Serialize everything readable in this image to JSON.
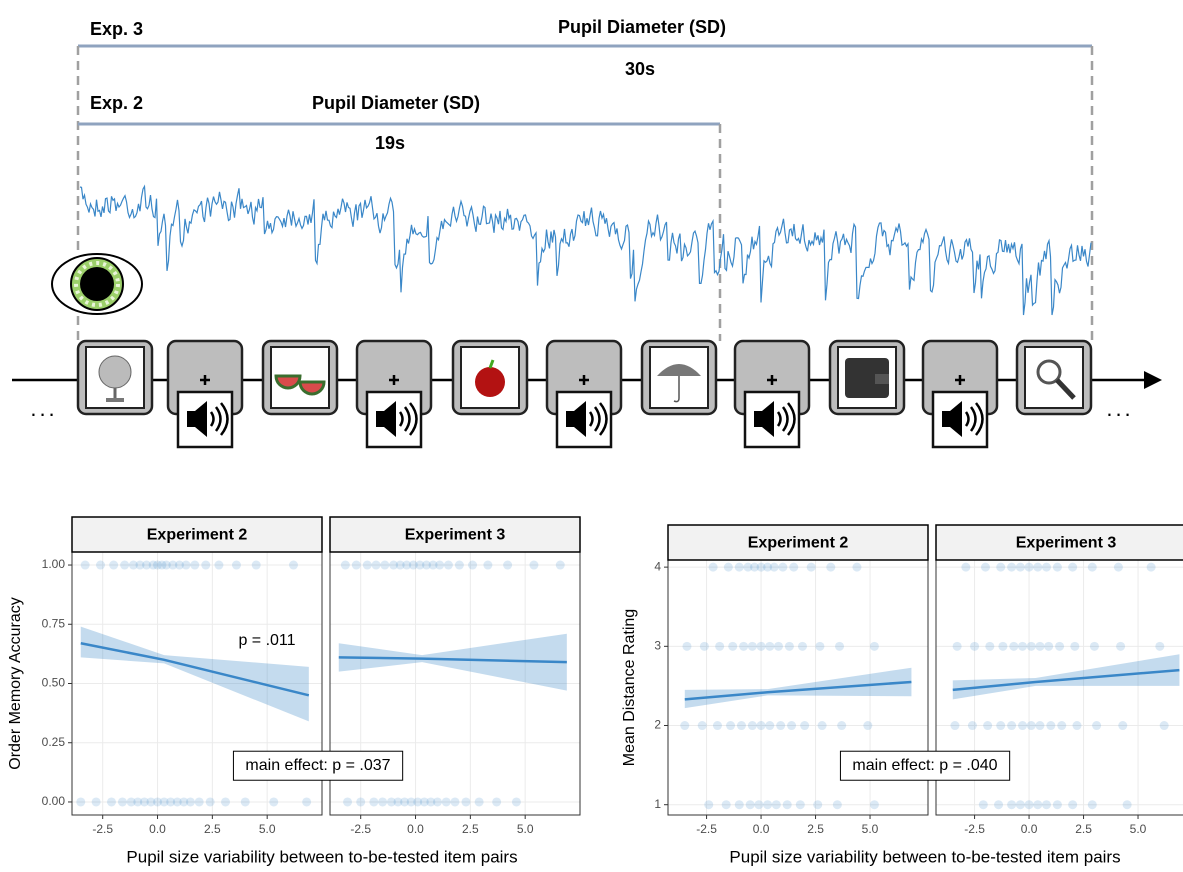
{
  "diagram": {
    "exp3": {
      "label": "Exp. 3",
      "measure": "Pupil Diameter (SD)",
      "duration": "30s"
    },
    "exp2": {
      "label": "Exp. 2",
      "measure": "Pupil Diameter (SD)",
      "duration": "19s"
    },
    "ellipsis_left": "...",
    "ellipsis_right": "..."
  },
  "chart_data": [
    {
      "type": "line",
      "ylabel": "Order Memory Accuracy",
      "xlabel": "Pupil size variability between to-be-tested item pairs",
      "annotation": "main effect: p = .037",
      "color": "#3a87c8",
      "ylim": [
        -0.055,
        1.055
      ],
      "yticks": [
        {
          "value": 0,
          "label": "0.00"
        },
        {
          "value": 0.25,
          "label": "0.25"
        },
        {
          "value": 0.5,
          "label": "0.50"
        },
        {
          "value": 0.75,
          "label": "0.75"
        },
        {
          "value": 1,
          "label": "1.00"
        }
      ],
      "grid": true,
      "facets": [
        {
          "title": "Experiment 2",
          "annotation": "p = .011",
          "xlim": [
            -3.9,
            7.5
          ],
          "xticks": [
            -2.5,
            {
              "value": 0,
              "label": "0.0"
            },
            2.5,
            {
              "value": 5,
              "label": "5.0"
            }
          ],
          "x": [
            -3.5,
            0.3,
            6.9
          ],
          "values": [
            0.67,
            0.6,
            0.45
          ],
          "ci_lower": [
            0.61,
            0.585,
            0.34
          ],
          "ci_upper": [
            0.74,
            0.62,
            0.57
          ],
          "points": [
            {
              "y": 1,
              "x": [
                -3.3,
                -2.6,
                -2,
                -1.5,
                -1.1,
                -0.8,
                -0.5,
                -0.2,
                0,
                0.2,
                0.4,
                0.7,
                1,
                1.3,
                1.7,
                2.2,
                2.8,
                3.6,
                4.5,
                6.2
              ]
            },
            {
              "y": 0,
              "x": [
                -3.5,
                -2.8,
                -2.1,
                -1.6,
                -1.2,
                -0.9,
                -0.6,
                -0.3,
                0,
                0.3,
                0.6,
                0.9,
                1.2,
                1.5,
                1.9,
                2.4,
                3.1,
                4,
                5.3,
                6.8
              ]
            }
          ]
        },
        {
          "title": "Experiment 3",
          "xlim": [
            -3.9,
            7.5
          ],
          "xticks": [
            -2.5,
            {
              "value": 0,
              "label": "0.0"
            },
            2.5,
            {
              "value": 5,
              "label": "5.0"
            }
          ],
          "x": [
            -3.5,
            0.3,
            6.9
          ],
          "values": [
            0.61,
            0.605,
            0.59
          ],
          "ci_lower": [
            0.55,
            0.59,
            0.47
          ],
          "ci_upper": [
            0.67,
            0.62,
            0.71
          ],
          "points": [
            {
              "y": 1,
              "x": [
                -3.2,
                -2.7,
                -2.2,
                -1.8,
                -1.4,
                -1,
                -0.7,
                -0.4,
                -0.1,
                0.2,
                0.5,
                0.8,
                1.1,
                1.5,
                2,
                2.6,
                3.3,
                4.2,
                5.4,
                6.6
              ]
            },
            {
              "y": 0,
              "x": [
                -3.1,
                -2.5,
                -1.9,
                -1.5,
                -1.1,
                -0.8,
                -0.5,
                -0.2,
                0.1,
                0.4,
                0.7,
                1,
                1.4,
                1.8,
                2.3,
                2.9,
                3.7,
                4.6
              ]
            }
          ]
        }
      ]
    },
    {
      "type": "line",
      "ylabel": "Mean Distance Rating",
      "xlabel": "Pupil size variability between to-be-tested item pairs",
      "annotation": "main effect: p = .040",
      "color": "#3a87c8",
      "ylim": [
        0.87,
        4.09
      ],
      "yticks": [
        1,
        2,
        3,
        4
      ],
      "grid": true,
      "facets": [
        {
          "title": "Experiment 2",
          "xlim": [
            -4.27,
            7.66
          ],
          "xticks": [
            -2.5,
            {
              "value": 0,
              "label": "0.0"
            },
            2.5,
            {
              "value": 5,
              "label": "5.0"
            }
          ],
          "x": [
            -3.5,
            0.3,
            6.9
          ],
          "values": [
            2.33,
            2.42,
            2.55
          ],
          "ci_lower": [
            2.22,
            2.38,
            2.37
          ],
          "ci_upper": [
            2.45,
            2.46,
            2.73
          ],
          "points": [
            {
              "y": 4,
              "x": [
                -2.2,
                -1.5,
                -1,
                -0.6,
                -0.3,
                0,
                0.3,
                0.6,
                1,
                1.5,
                2.3,
                3.2,
                4.4
              ]
            },
            {
              "y": 3,
              "x": [
                -3.4,
                -2.6,
                -1.9,
                -1.3,
                -0.8,
                -0.4,
                0,
                0.4,
                0.8,
                1.3,
                1.9,
                2.7,
                3.6,
                5.2
              ]
            },
            {
              "y": 2,
              "x": [
                -3.5,
                -2.7,
                -2,
                -1.4,
                -0.9,
                -0.4,
                0,
                0.4,
                0.9,
                1.4,
                2,
                2.8,
                3.7,
                4.9
              ]
            },
            {
              "y": 1,
              "x": [
                -2.4,
                -1.6,
                -1,
                -0.5,
                -0.1,
                0.3,
                0.7,
                1.2,
                1.8,
                2.6,
                3.5,
                5.2
              ]
            }
          ]
        },
        {
          "title": "Experiment 3",
          "xlim": [
            -4.27,
            7.66
          ],
          "xticks": [
            -2.5,
            {
              "value": 0,
              "label": "0.0"
            },
            2.5,
            {
              "value": 5,
              "label": "5.0"
            }
          ],
          "x": [
            -3.5,
            0.3,
            6.9
          ],
          "values": [
            2.45,
            2.55,
            2.7
          ],
          "ci_lower": [
            2.33,
            2.5,
            2.5
          ],
          "ci_upper": [
            2.57,
            2.6,
            2.9
          ],
          "points": [
            {
              "y": 4,
              "x": [
                -2.9,
                -2,
                -1.3,
                -0.8,
                -0.4,
                0,
                0.4,
                0.8,
                1.3,
                2,
                2.9,
                4.1,
                5.6
              ]
            },
            {
              "y": 3,
              "x": [
                -3.3,
                -2.5,
                -1.8,
                -1.2,
                -0.7,
                -0.3,
                0.1,
                0.5,
                0.9,
                1.4,
                2.1,
                3,
                4.2,
                6
              ]
            },
            {
              "y": 2,
              "x": [
                -3.4,
                -2.6,
                -1.9,
                -1.3,
                -0.8,
                -0.3,
                0.1,
                0.5,
                1,
                1.5,
                2.2,
                3.1,
                4.3,
                6.2
              ]
            },
            {
              "y": 1,
              "x": [
                -2.1,
                -1.4,
                -0.8,
                -0.4,
                0,
                0.4,
                0.8,
                1.3,
                2,
                2.9,
                4.5
              ]
            }
          ]
        }
      ]
    }
  ]
}
